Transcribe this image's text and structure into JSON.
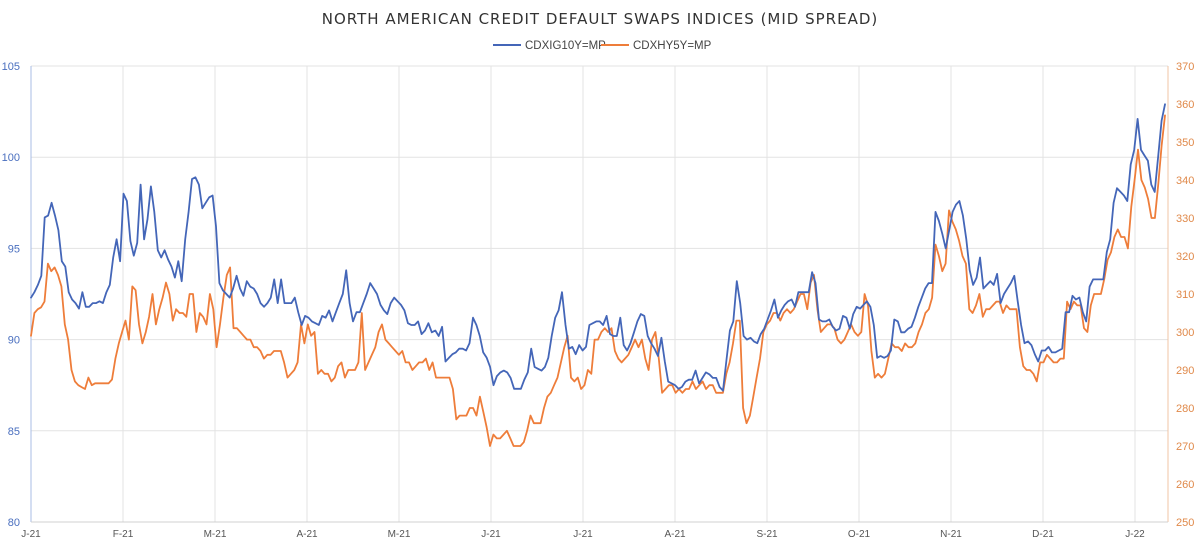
{
  "chart_data": {
    "type": "line",
    "title": "NORTH AMERICAN CREDIT DEFAULT SWAPS INDICES (MID SPREAD)",
    "legend_position": "top-center",
    "grid": {
      "vertical": true,
      "horizontal": true
    },
    "x_tick_labels": [
      "J-21",
      "F-21",
      "M-21",
      "A-21",
      "M-21",
      "J-21",
      "J-21",
      "A-21",
      "S-21",
      "O-21",
      "N-21",
      "D-21",
      "J-22"
    ],
    "y_left": {
      "min": 80,
      "max": 105,
      "ticks": [
        80,
        85,
        90,
        95,
        100,
        105
      ],
      "color": "#4a6fbf"
    },
    "y_right": {
      "min": 250,
      "max": 370,
      "ticks": [
        250,
        260,
        270,
        280,
        290,
        300,
        310,
        320,
        330,
        340,
        350,
        360,
        370
      ],
      "color": "#e0894a"
    },
    "series": [
      {
        "name": "CDXIG10Y=MP",
        "axis": "left",
        "color": "#4466b8",
        "values": [
          92.3,
          92.6,
          93.0,
          93.5,
          96.7,
          96.8,
          97.5,
          96.8,
          96.0,
          94.3,
          94.0,
          92.6,
          92.2,
          92.0,
          91.7,
          92.6,
          91.8,
          91.8,
          92.0,
          92.0,
          92.1,
          92.0,
          92.6,
          93.0,
          94.5,
          95.5,
          94.3,
          98.0,
          97.6,
          95.4,
          94.6,
          95.3,
          98.5,
          95.5,
          96.6,
          98.4,
          97.0,
          94.9,
          94.5,
          94.9,
          94.4,
          94.0,
          93.4,
          94.3,
          93.2,
          95.5,
          97.0,
          98.8,
          98.9,
          98.5,
          97.2,
          97.5,
          97.8,
          97.9,
          96.2,
          93.1,
          92.7,
          92.5,
          92.3,
          92.8,
          93.5,
          92.8,
          92.4,
          93.2,
          92.9,
          92.8,
          92.5,
          92.0,
          91.8,
          92.0,
          92.3,
          93.3,
          92.0,
          93.3,
          92.0,
          92.0,
          92.0,
          92.3,
          91.5,
          90.8,
          91.3,
          91.2,
          91.0,
          90.9,
          90.8,
          91.3,
          91.2,
          91.6,
          91.0,
          91.5,
          92.0,
          92.5,
          93.8,
          92.0,
          91.0,
          91.5,
          91.5,
          92.0,
          92.5,
          93.1,
          92.8,
          92.5,
          91.9,
          91.6,
          91.4,
          92.0,
          92.3,
          92.1,
          91.9,
          91.6,
          90.9,
          90.8,
          90.8,
          91.0,
          90.3,
          90.5,
          90.9,
          90.4,
          90.5,
          90.2,
          90.7,
          88.8,
          89.0,
          89.2,
          89.3,
          89.5,
          89.5,
          89.4,
          89.8,
          91.2,
          90.8,
          90.2,
          89.3,
          89.0,
          88.5,
          87.5,
          88.0,
          88.2,
          88.3,
          88.2,
          87.9,
          87.3,
          87.3,
          87.3,
          87.8,
          88.2,
          89.5,
          88.5,
          88.4,
          88.3,
          88.5,
          89.0,
          90.2,
          91.2,
          91.6,
          92.6,
          90.8,
          89.5,
          89.6,
          89.2,
          89.7,
          89.4,
          89.6,
          90.8,
          90.9,
          91.0,
          91.0,
          90.8,
          91.3,
          90.3,
          90.2,
          90.2,
          91.2,
          89.7,
          89.4,
          89.8,
          90.4,
          91.0,
          91.4,
          91.3,
          90.2,
          89.8,
          89.5,
          89.1,
          90.1,
          88.8,
          87.7,
          87.6,
          87.5,
          87.3,
          87.4,
          87.7,
          87.8,
          87.8,
          88.3,
          87.6,
          87.9,
          88.2,
          88.1,
          87.9,
          87.9,
          87.4,
          87.2,
          88.9,
          90.5,
          91.0,
          93.2,
          92.0,
          90.2,
          90.0,
          90.1,
          89.9,
          89.8,
          90.3,
          90.6,
          91.1,
          91.6,
          92.2,
          91.2,
          91.6,
          91.9,
          92.1,
          92.2,
          91.8,
          92.6,
          92.6,
          92.6,
          92.6,
          93.7,
          93.1,
          91.1,
          91.0,
          91.0,
          91.1,
          90.7,
          90.5,
          90.6,
          91.3,
          91.2,
          90.6,
          91.4,
          91.8,
          91.7,
          91.9,
          92.1,
          91.8,
          90.8,
          89.0,
          89.1,
          89.0,
          89.1,
          89.4,
          91.1,
          91.0,
          90.4,
          90.4,
          90.6,
          90.7,
          91.2,
          91.8,
          92.3,
          92.8,
          93.1,
          93.1,
          97.0,
          96.5,
          95.8,
          95.0,
          96.0,
          97.0,
          97.4,
          97.6,
          96.8,
          95.5,
          93.8,
          93.0,
          93.4,
          94.5,
          92.8,
          93.0,
          93.2,
          93.0,
          93.6,
          92.0,
          92.5,
          92.8,
          93.1,
          93.5,
          92.1,
          90.8,
          89.8,
          89.9,
          89.7,
          89.2,
          88.8,
          89.4,
          89.4,
          89.6,
          89.3,
          89.3,
          89.4,
          89.5,
          91.5,
          91.5,
          92.4,
          92.2,
          92.3,
          91.5,
          91.0,
          92.9,
          93.3,
          93.3,
          93.3,
          93.3,
          94.8,
          95.5,
          97.5,
          98.3,
          98.1,
          97.9,
          97.6,
          99.6,
          100.4,
          102.1,
          100.4,
          100.1,
          99.8,
          98.5,
          98.1,
          100.0,
          102.0,
          102.9
        ]
      },
      {
        "name": "CDXHY5Y=MP",
        "axis": "right",
        "color": "#ee7d3a",
        "values": [
          299,
          305,
          306,
          306.5,
          308,
          318,
          316,
          317,
          315,
          312,
          302,
          298,
          290,
          287,
          286,
          285.5,
          285,
          288,
          286,
          286.5,
          286.5,
          286.5,
          286.5,
          286.5,
          287.5,
          293,
          297,
          300,
          303,
          298,
          312,
          311,
          302,
          297,
          300,
          304,
          310,
          302,
          306,
          309,
          313,
          310,
          303,
          306,
          305,
          305,
          304,
          310,
          310,
          300,
          305,
          304,
          302,
          310,
          306,
          296,
          302,
          309,
          315,
          317,
          301,
          301,
          300,
          299,
          298,
          298,
          296,
          296,
          295,
          293,
          294,
          294,
          295,
          295,
          295,
          292,
          288,
          289,
          290,
          292,
          302,
          297,
          302,
          299,
          300,
          289,
          290,
          289,
          289,
          287,
          288,
          291,
          292,
          288,
          290,
          290,
          290,
          292,
          305,
          290,
          292,
          294,
          296,
          300,
          302,
          298,
          297,
          296,
          295,
          294,
          295,
          292,
          292,
          290,
          291,
          292,
          292,
          293,
          290,
          292,
          288,
          288,
          288,
          288,
          288,
          285,
          277,
          278,
          278,
          278,
          280,
          280,
          278,
          283,
          279,
          275,
          270,
          273,
          272,
          272,
          273,
          274,
          272,
          270,
          270,
          270,
          271,
          274,
          278,
          276,
          276,
          276,
          280,
          283,
          284,
          286,
          288,
          292,
          296,
          299,
          288,
          287,
          288,
          285,
          286,
          290,
          289,
          298,
          298,
          300,
          301,
          300,
          301,
          295,
          293,
          292,
          293,
          294,
          296,
          298,
          296,
          298,
          293,
          290,
          298,
          300,
          293,
          284,
          285,
          286,
          286,
          284,
          285,
          284,
          285,
          285,
          287,
          285,
          286,
          287,
          285,
          286,
          286,
          284,
          284,
          284,
          289,
          292,
          297,
          303,
          303,
          280,
          276,
          278,
          283,
          288,
          293,
          300,
          302,
          303,
          305,
          305,
          303,
          305,
          306,
          305,
          306,
          308,
          310,
          310,
          306,
          313,
          315,
          306,
          300,
          301,
          302,
          302,
          301,
          298,
          297,
          298,
          300,
          302,
          300,
          299,
          300,
          310,
          307,
          295,
          288,
          289,
          288,
          289,
          293,
          297,
          296,
          296,
          295,
          297,
          296,
          296,
          297,
          300,
          302,
          305,
          306,
          309,
          323,
          320,
          316,
          318,
          332,
          329,
          327,
          324,
          320,
          318,
          306,
          305,
          307,
          310,
          304,
          306,
          306,
          307,
          308,
          308,
          305,
          307,
          306,
          306,
          306,
          296,
          291,
          290,
          290,
          289,
          287,
          292,
          292,
          294,
          293,
          292,
          292,
          293,
          293,
          308,
          306,
          308,
          307,
          307,
          301,
          300,
          307,
          310,
          310,
          310,
          314,
          319,
          321,
          325,
          327,
          325,
          325,
          322,
          333,
          340,
          348,
          340,
          338,
          335,
          330,
          330,
          339,
          349,
          357
        ]
      }
    ]
  }
}
